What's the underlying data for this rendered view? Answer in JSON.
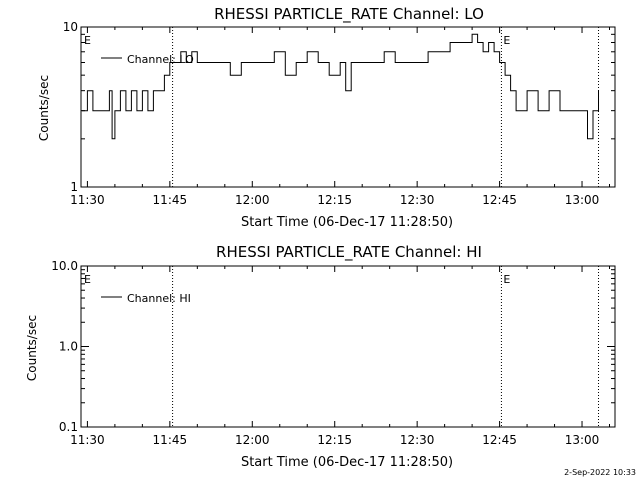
{
  "footer_date": "2-Sep-2022 10:33",
  "chart_data": [
    {
      "type": "line",
      "title": "RHESSI PARTICLE_RATE Channel: LO",
      "xlabel": "Start Time (06-Dec-17 11:28:50)",
      "ylabel": "Counts/sec",
      "y_scale": "log",
      "ylim": [
        1,
        10
      ],
      "y_ticks": [
        "1",
        "10"
      ],
      "xlim": [
        "11:28:50",
        "13:06:00"
      ],
      "x_ticks": [
        "11:30",
        "11:45",
        "12:00",
        "12:15",
        "12:30",
        "12:45",
        "13:00"
      ],
      "legend": "Channel: LO",
      "legend_position": "upper-left",
      "event_markers": [
        {
          "time": "11:45:30",
          "label": "E"
        },
        {
          "time": "12:45:20",
          "label": "E"
        },
        {
          "time": "13:03:00",
          "label": ""
        }
      ],
      "series": [
        {
          "name": "Channel: LO",
          "x": [
            "11:29:00",
            "11:30:00",
            "11:31:00",
            "11:32:00",
            "11:33:00",
            "11:34:00",
            "11:34:30",
            "11:35:00",
            "11:36:00",
            "11:37:00",
            "11:38:00",
            "11:39:00",
            "11:40:00",
            "11:41:00",
            "11:42:00",
            "11:43:00",
            "11:44:00",
            "11:45:00",
            "11:46:00",
            "11:47:00",
            "11:48:00",
            "11:49:00",
            "11:50:00",
            "11:52:00",
            "11:54:00",
            "11:56:00",
            "11:58:00",
            "12:00:00",
            "12:02:00",
            "12:04:00",
            "12:06:00",
            "12:08:00",
            "12:10:00",
            "12:12:00",
            "12:14:00",
            "12:16:00",
            "12:17:00",
            "12:18:00",
            "12:20:00",
            "12:22:00",
            "12:24:00",
            "12:26:00",
            "12:28:00",
            "12:30:00",
            "12:32:00",
            "12:34:00",
            "12:36:00",
            "12:38:00",
            "12:39:00",
            "12:40:00",
            "12:41:00",
            "12:42:00",
            "12:43:00",
            "12:44:00",
            "12:45:00",
            "12:46:00",
            "12:47:00",
            "12:48:00",
            "12:50:00",
            "12:52:00",
            "12:54:00",
            "12:56:00",
            "12:58:00",
            "13:00:00",
            "13:01:00",
            "13:02:00",
            "13:03:00"
          ],
          "y": [
            3,
            4,
            3,
            3,
            3,
            4,
            2,
            3,
            4,
            3,
            4,
            3,
            4,
            3,
            4,
            4,
            5,
            6,
            6,
            7,
            6,
            7,
            6,
            6,
            6,
            5,
            6,
            6,
            6,
            7,
            5,
            6,
            7,
            6,
            5,
            6,
            4,
            6,
            6,
            6,
            7,
            6,
            6,
            6,
            7,
            7,
            8,
            8,
            8,
            9,
            8,
            7,
            8,
            7,
            6,
            5,
            4,
            3,
            4,
            3,
            4,
            3,
            3,
            3,
            2,
            3,
            4
          ]
        }
      ]
    },
    {
      "type": "line",
      "title": "RHESSI PARTICLE_RATE Channel: HI",
      "xlabel": "Start Time (06-Dec-17 11:28:50)",
      "ylabel": "Counts/sec",
      "y_scale": "log",
      "ylim": [
        0.1,
        10
      ],
      "y_ticks": [
        "0.1",
        "1.0",
        "10.0"
      ],
      "xlim": [
        "11:28:50",
        "13:06:00"
      ],
      "x_ticks": [
        "11:30",
        "11:45",
        "12:00",
        "12:15",
        "12:30",
        "12:45",
        "13:00"
      ],
      "legend": "Channel: HI",
      "legend_position": "upper-left",
      "event_markers": [
        {
          "time": "11:45:30",
          "label": "E"
        },
        {
          "time": "12:45:20",
          "label": "E"
        },
        {
          "time": "13:03:00",
          "label": ""
        }
      ],
      "series": [
        {
          "name": "Channel: HI",
          "x": [],
          "y": []
        }
      ]
    }
  ]
}
